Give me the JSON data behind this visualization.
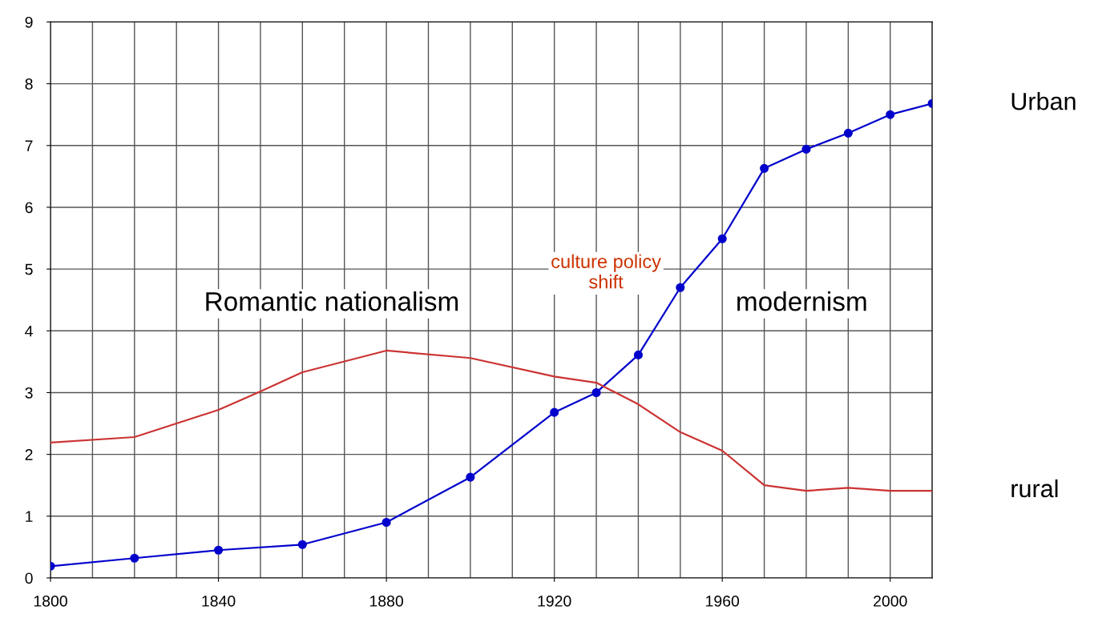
{
  "chart_data": {
    "type": "line",
    "xlim": [
      1800,
      2010
    ],
    "ylim": [
      0,
      9
    ],
    "xticks": [
      1800,
      1840,
      1880,
      1920,
      1960,
      2000
    ],
    "yticks": [
      0,
      1,
      2,
      3,
      4,
      5,
      6,
      7,
      8,
      9
    ],
    "grid": true,
    "legend": false,
    "series": [
      {
        "name": "Urban",
        "color": "#0000cc",
        "marker": "circle",
        "x": [
          1800,
          1820,
          1840,
          1860,
          1880,
          1900,
          1920,
          1930,
          1940,
          1950,
          1960,
          1970,
          1980,
          1990,
          2000,
          2010
        ],
        "values": [
          0.19,
          0.32,
          0.45,
          0.54,
          0.9,
          1.63,
          2.68,
          3.0,
          3.61,
          4.7,
          5.49,
          6.63,
          6.94,
          7.2,
          7.5,
          7.68
        ]
      },
      {
        "name": "rural",
        "color": "#cc3333",
        "marker": "none",
        "x": [
          1800,
          1820,
          1840,
          1850,
          1860,
          1880,
          1900,
          1920,
          1930,
          1940,
          1950,
          1960,
          1970,
          1980,
          1990,
          2000,
          2010
        ],
        "values": [
          2.19,
          2.28,
          2.72,
          3.02,
          3.33,
          3.68,
          3.56,
          3.26,
          3.16,
          2.81,
          2.36,
          2.06,
          1.5,
          1.41,
          1.46,
          1.41,
          1.41
        ]
      }
    ],
    "annotations": [
      "Romantic nationalism",
      "culture policy shift",
      "modernism"
    ]
  }
}
